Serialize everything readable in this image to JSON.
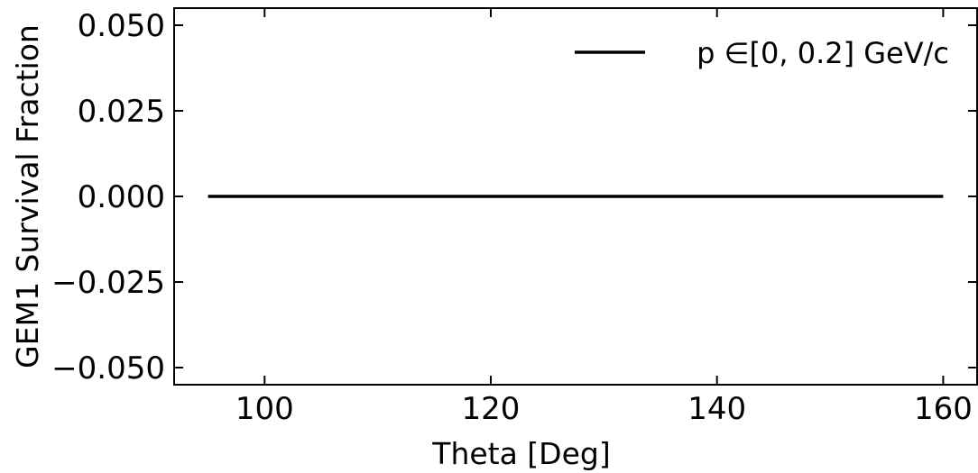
{
  "chart_data": {
    "type": "line",
    "xlabel": "Theta [Deg]",
    "ylabel": "GEM1 Survival Fraction",
    "xlim": [
      92,
      163
    ],
    "ylim": [
      -0.055,
      0.055
    ],
    "x_ticks": [
      100,
      120,
      140,
      160
    ],
    "x_tick_labels": [
      "100",
      "120",
      "140",
      "160"
    ],
    "y_ticks": [
      -0.05,
      -0.025,
      0.0,
      0.025,
      0.05
    ],
    "y_tick_labels": [
      "−0.050",
      "−0.025",
      "0.000",
      "0.025",
      "0.050"
    ],
    "grid": false,
    "legend_position": "top-right",
    "series": [
      {
        "name": "p  ∈[0, 0.2] GeV/c",
        "color": "#000000",
        "x": [
          95,
          160
        ],
        "y": [
          0.0,
          0.0
        ]
      }
    ]
  }
}
